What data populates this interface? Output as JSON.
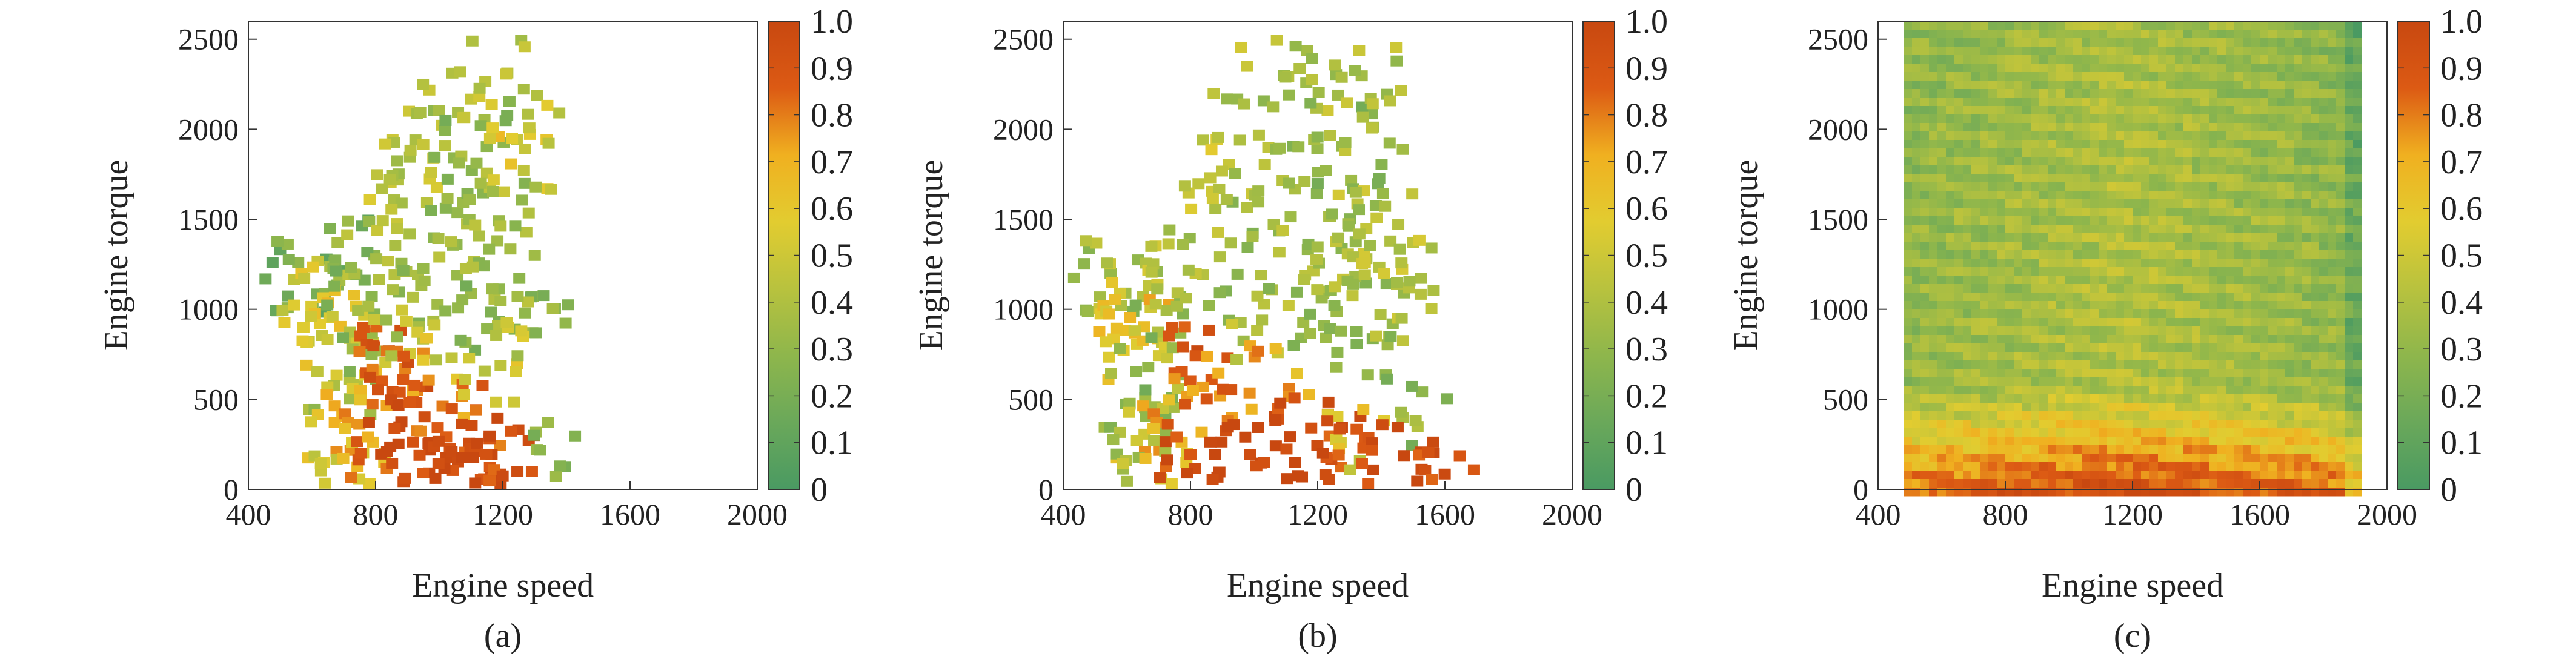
{
  "chart_data": [
    {
      "type": "heatmap",
      "caption": "(a)",
      "xlabel": "Engine speed",
      "ylabel": "Engine torque",
      "xlim": [
        400,
        2000
      ],
      "ylim": [
        0,
        2600
      ],
      "xticks": [
        "400",
        "800",
        "1200",
        "1600",
        "2000"
      ],
      "yticks": [
        "0",
        "500",
        "1000",
        "1500",
        "2000",
        "2500"
      ],
      "colorbar": {
        "min": 0,
        "max": 1,
        "ticks": [
          "0",
          "0.1",
          "0.2",
          "0.3",
          "0.4",
          "0.5",
          "0.6",
          "0.7",
          "0.8",
          "0.9",
          "1.0"
        ],
        "colors": [
          "#4a9a62",
          "#6aa85a",
          "#8eb64c",
          "#b8c23e",
          "#e2cc30",
          "#f0b020",
          "#dc5a14",
          "#c84810"
        ]
      },
      "cells": [
        [
          560,
          1175,
          0.2
        ],
        [
          590,
          1185,
          0.2
        ],
        [
          610,
          1190,
          0.35
        ],
        [
          680,
          1190,
          0.5
        ],
        [
          620,
          950,
          0.55
        ],
        [
          680,
          880,
          0.6
        ],
        [
          680,
          780,
          0.5
        ],
        [
          700,
          600,
          0.3
        ],
        [
          700,
          500,
          0.6
        ],
        [
          700,
          300,
          0.7
        ],
        [
          720,
          150,
          0.5
        ],
        [
          740,
          60,
          0.6
        ],
        [
          760,
          1000,
          0.3
        ],
        [
          760,
          1300,
          0.2
        ],
        [
          800,
          1550,
          0.45
        ],
        [
          820,
          1350,
          0.4
        ],
        [
          800,
          800,
          0.9
        ],
        [
          820,
          650,
          0.85
        ],
        [
          820,
          250,
          0.8
        ],
        [
          850,
          400,
          0.95
        ],
        [
          880,
          900,
          0.4
        ],
        [
          880,
          1750,
          0.45
        ],
        [
          900,
          1100,
          0.35
        ],
        [
          900,
          600,
          0.85
        ],
        [
          900,
          150,
          1.0
        ],
        [
          940,
          1900,
          0.4
        ],
        [
          950,
          1400,
          0.35
        ],
        [
          950,
          800,
          0.5
        ],
        [
          960,
          300,
          0.95
        ],
        [
          980,
          60,
          1.0
        ],
        [
          1000,
          2100,
          0.4
        ],
        [
          1000,
          1200,
          0.35
        ],
        [
          1020,
          500,
          0.8
        ],
        [
          1040,
          200,
          0.95
        ],
        [
          1060,
          2250,
          0.45
        ],
        [
          1070,
          1650,
          0.3
        ],
        [
          1080,
          900,
          0.3
        ],
        [
          1100,
          400,
          0.9
        ],
        [
          1100,
          100,
          1.0
        ],
        [
          1120,
          2000,
          0.25
        ],
        [
          1130,
          1300,
          0.35
        ],
        [
          1140,
          650,
          0.5
        ],
        [
          1160,
          250,
          0.95
        ],
        [
          1180,
          1050,
          0.3
        ],
        [
          1200,
          2300,
          0.4
        ],
        [
          1200,
          1600,
          0.35
        ],
        [
          1200,
          180,
          1.0
        ],
        [
          1240,
          1850,
          0.55
        ],
        [
          1280,
          1980,
          0.5
        ],
        [
          1300,
          1000,
          0.25
        ],
        [
          1260,
          940,
          0.45
        ],
        [
          1320,
          270,
          0.3
        ],
        [
          1180,
          90,
          0.95
        ],
        [
          1240,
          1500,
          0.35
        ]
      ]
    },
    {
      "type": "heatmap",
      "caption": "(b)",
      "xlabel": "Engine speed",
      "ylabel": "Engine torque",
      "xlim": [
        400,
        2000
      ],
      "ylim": [
        0,
        2600
      ],
      "xticks": [
        "400",
        "800",
        "1200",
        "1600",
        "2000"
      ],
      "yticks": [
        "0",
        "500",
        "1000",
        "1500",
        "2000",
        "2500"
      ],
      "colorbar": {
        "min": 0,
        "max": 1,
        "ticks": [
          "0",
          "0.1",
          "0.2",
          "0.3",
          "0.4",
          "0.5",
          "0.6",
          "0.7",
          "0.8",
          "0.9",
          "1.0"
        ],
        "colors": [
          "#4a9a62",
          "#6aa85a",
          "#8eb64c",
          "#b8c23e",
          "#e2cc30",
          "#f0b020",
          "#dc5a14",
          "#c84810"
        ]
      },
      "cells": [
        [
          540,
          1180,
          0.35
        ],
        [
          580,
          1180,
          0.4
        ],
        [
          620,
          1170,
          0.5
        ],
        [
          640,
          1010,
          0.55
        ],
        [
          620,
          900,
          0.65
        ],
        [
          640,
          800,
          0.6
        ],
        [
          660,
          600,
          0.3
        ],
        [
          640,
          500,
          0.25
        ],
        [
          660,
          400,
          0.4
        ],
        [
          680,
          300,
          0.7
        ],
        [
          680,
          160,
          0.35
        ],
        [
          700,
          60,
          0.6
        ],
        [
          740,
          1000,
          0.3
        ],
        [
          780,
          1200,
          0.4
        ],
        [
          820,
          1500,
          0.45
        ],
        [
          880,
          1800,
          0.5
        ],
        [
          780,
          800,
          0.9
        ],
        [
          820,
          500,
          0.8
        ],
        [
          800,
          250,
          0.95
        ],
        [
          860,
          120,
          1.0
        ],
        [
          900,
          700,
          0.8
        ],
        [
          920,
          1100,
          0.35
        ],
        [
          960,
          1600,
          0.35
        ],
        [
          980,
          2000,
          0.35
        ],
        [
          1000,
          300,
          1.0
        ],
        [
          1040,
          900,
          0.4
        ],
        [
          1060,
          2300,
          0.4
        ],
        [
          1080,
          1400,
          0.35
        ],
        [
          1100,
          600,
          0.7
        ],
        [
          1120,
          150,
          1.0
        ],
        [
          1140,
          1900,
          0.35
        ],
        [
          1160,
          1100,
          0.35
        ],
        [
          1180,
          400,
          0.95
        ],
        [
          1200,
          2300,
          0.4
        ],
        [
          1220,
          1700,
          0.35
        ],
        [
          1220,
          900,
          0.3
        ],
        [
          1240,
          250,
          0.95
        ],
        [
          1260,
          1300,
          0.35
        ],
        [
          1280,
          2100,
          0.3
        ],
        [
          1300,
          1650,
          0.25
        ],
        [
          1300,
          1200,
          0.4
        ],
        [
          1320,
          800,
          0.3
        ],
        [
          1320,
          300,
          0.55
        ],
        [
          1340,
          1450,
          0.4
        ],
        [
          1360,
          2000,
          0.35
        ],
        [
          1380,
          2280,
          0.4
        ],
        [
          1390,
          1000,
          0.35
        ],
        [
          1400,
          1550,
          0.4
        ],
        [
          1460,
          1230,
          0.45
        ],
        [
          1460,
          1080,
          0.4
        ],
        [
          1510,
          440,
          0.3
        ],
        [
          1540,
          160,
          0.95
        ],
        [
          1580,
          100,
          0.95
        ],
        [
          1340,
          180,
          0.95
        ],
        [
          1300,
          60,
          0.95
        ]
      ]
    },
    {
      "type": "heatmap",
      "caption": "(c)",
      "xlabel": "Engine speed",
      "ylabel": "Engine torque",
      "xlim": [
        400,
        2000
      ],
      "ylim": [
        0,
        2600
      ],
      "xticks": [
        "400",
        "800",
        "1200",
        "1600",
        "2000"
      ],
      "yticks": [
        "0",
        "500",
        "1000",
        "1500",
        "2000",
        "2500"
      ],
      "colorbar": {
        "min": 0,
        "max": 1,
        "ticks": [
          "0",
          "0.1",
          "0.2",
          "0.3",
          "0.4",
          "0.5",
          "0.6",
          "0.7",
          "0.8",
          "0.9",
          "1.0"
        ],
        "colors": [
          "#4a9a62",
          "#6aa85a",
          "#8eb64c",
          "#b8c23e",
          "#e2cc30",
          "#f0b020",
          "#dc5a14",
          "#c84810"
        ]
      },
      "cells": [
        [
          500,
          2500,
          0.25
        ],
        [
          700,
          2500,
          0.35
        ],
        [
          900,
          2500,
          0.3
        ],
        [
          1100,
          2500,
          0.35
        ],
        [
          1300,
          2500,
          0.3
        ],
        [
          1500,
          2500,
          0.25
        ],
        [
          1700,
          2500,
          0.2
        ],
        [
          1880,
          2500,
          0.15
        ],
        [
          500,
          2000,
          0.25
        ],
        [
          700,
          2000,
          0.35
        ],
        [
          900,
          2000,
          0.4
        ],
        [
          1100,
          2000,
          0.4
        ],
        [
          1300,
          2000,
          0.4
        ],
        [
          1500,
          2000,
          0.35
        ],
        [
          1700,
          2000,
          0.3
        ],
        [
          1880,
          2000,
          0.15
        ],
        [
          500,
          1500,
          0.3
        ],
        [
          700,
          1500,
          0.35
        ],
        [
          900,
          1500,
          0.45
        ],
        [
          1100,
          1500,
          0.4
        ],
        [
          1300,
          1500,
          0.4
        ],
        [
          1500,
          1500,
          0.35
        ],
        [
          1700,
          1500,
          0.3
        ],
        [
          1880,
          1500,
          0.15
        ],
        [
          500,
          1000,
          0.3
        ],
        [
          700,
          1000,
          0.35
        ],
        [
          900,
          1000,
          0.45
        ],
        [
          1100,
          1000,
          0.45
        ],
        [
          1300,
          1000,
          0.4
        ],
        [
          1500,
          1000,
          0.4
        ],
        [
          1700,
          1000,
          0.35
        ],
        [
          1880,
          1000,
          0.2
        ],
        [
          500,
          500,
          0.5
        ],
        [
          700,
          500,
          0.55
        ],
        [
          900,
          500,
          0.55
        ],
        [
          1100,
          500,
          0.6
        ],
        [
          1300,
          500,
          0.55
        ],
        [
          1500,
          500,
          0.55
        ],
        [
          1700,
          500,
          0.5
        ],
        [
          1880,
          500,
          0.3
        ],
        [
          500,
          150,
          0.95
        ],
        [
          700,
          150,
          1.0
        ],
        [
          900,
          150,
          1.0
        ],
        [
          1100,
          150,
          1.0
        ],
        [
          1300,
          150,
          1.0
        ],
        [
          1500,
          150,
          1.0
        ],
        [
          1700,
          150,
          1.0
        ],
        [
          1880,
          150,
          0.9
        ]
      ]
    }
  ]
}
